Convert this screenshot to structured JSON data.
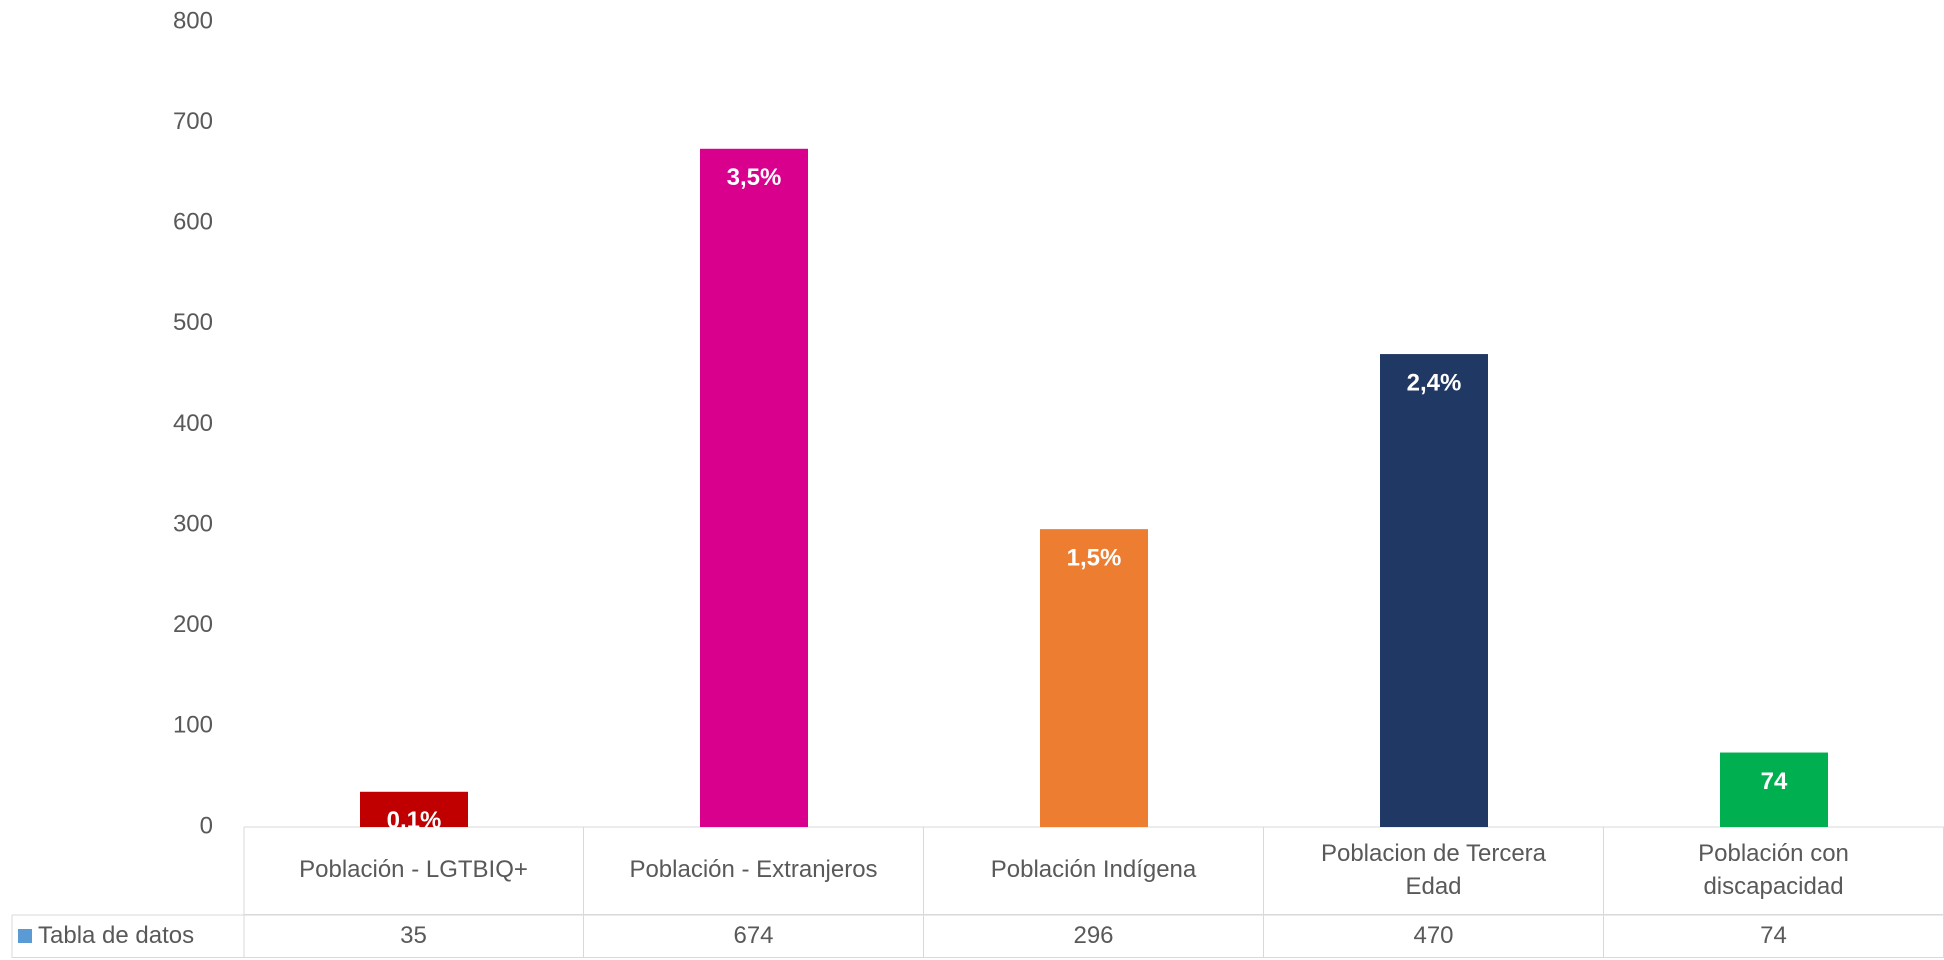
{
  "chart_data": {
    "type": "bar",
    "categories": [
      "Población - LGTBIQ+",
      "Población -  Extranjeros",
      "Población Indígena",
      "Poblacion de Tercera Edad",
      "Población con discapacidad"
    ],
    "series": [
      {
        "name": "Tabla de datos",
        "color": "#5b9bd5",
        "colors": [
          "#c00000",
          "#d9008d",
          "#ed7d31",
          "#203864",
          "#00b050"
        ],
        "values": [
          35,
          674,
          296,
          470,
          74
        ],
        "value_labels": [
          "0,1%",
          "3,5%",
          "1,5%",
          "2,4%",
          "74"
        ]
      }
    ],
    "ylim": [
      0,
      800
    ],
    "yticks": [
      0,
      100,
      200,
      300,
      400,
      500,
      600,
      700,
      800
    ],
    "grid": false
  }
}
